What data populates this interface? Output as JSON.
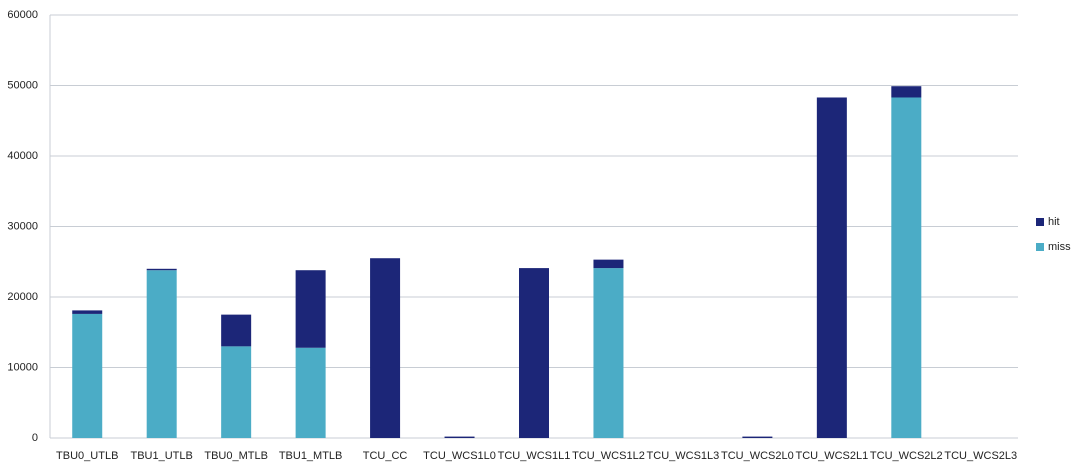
{
  "chart_data": {
    "type": "stacked-bar",
    "categories": [
      "TBU0_UTLB",
      "TBU1_UTLB",
      "TBU0_MTLB",
      "TBU1_MTLB",
      "TCU_CC",
      "TCU_WCS1L0",
      "TCU_WCS1L1",
      "TCU_WCS1L2",
      "TCU_WCS1L3",
      "TCU_WCS2L0",
      "TCU_WCS2L1",
      "TCU_WCS2L2",
      "TCU_WCS2L3"
    ],
    "series": [
      {
        "name": "hit",
        "color": "#1c2678",
        "values": [
          500,
          200,
          4500,
          11000,
          25500,
          200,
          24100,
          1200,
          0,
          200,
          48300,
          1600,
          0
        ]
      },
      {
        "name": "miss",
        "color": "#4bacc6",
        "values": [
          17600,
          23800,
          13000,
          12800,
          0,
          0,
          0,
          24100,
          0,
          0,
          0,
          48300,
          0
        ]
      }
    ],
    "ylim": [
      0,
      60000
    ],
    "yticks": [
      0,
      10000,
      20000,
      30000,
      40000,
      50000,
      60000
    ],
    "grid": true,
    "legend": "right"
  }
}
